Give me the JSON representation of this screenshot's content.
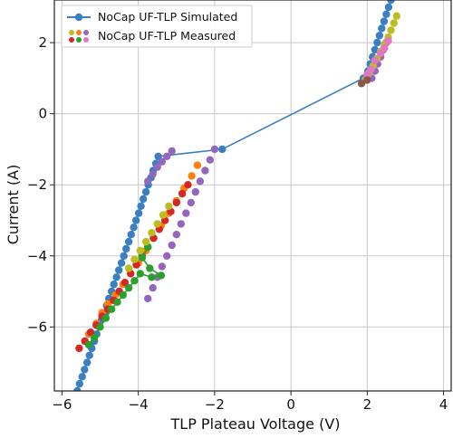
{
  "chart_data": {
    "type": "scatter",
    "xlabel": "TLP Plateau Voltage (V)",
    "ylabel": "Current (A)",
    "xlim": [
      -6.2,
      4.2
    ],
    "ylim": [
      -7.8,
      3.2
    ],
    "xticks": [
      -6,
      -4,
      -2,
      0,
      2,
      4
    ],
    "yticks": [
      -6,
      -4,
      -2,
      0,
      2
    ],
    "xtick_labels": [
      "−6",
      "−4",
      "−2",
      "0",
      "2",
      "4"
    ],
    "ytick_labels": [
      "−6",
      "−4",
      "−2",
      "0",
      "2"
    ],
    "grid": true,
    "legend_position": "top-left",
    "legend": {
      "simulated": "NoCap UF-TLP Simulated",
      "measured": "NoCap UF-TLP Measured"
    },
    "series": [
      {
        "name": "NoCap UF-TLP Simulated",
        "color": "#3a7fc1",
        "style": "line-markers",
        "points": [
          [
            -5.6,
            -7.8
          ],
          [
            -5.54,
            -7.6
          ],
          [
            -5.47,
            -7.4
          ],
          [
            -5.41,
            -7.2
          ],
          [
            -5.34,
            -7.0
          ],
          [
            -5.28,
            -6.8
          ],
          [
            -5.22,
            -6.6
          ],
          [
            -5.15,
            -6.4
          ],
          [
            -5.09,
            -6.2
          ],
          [
            -5.02,
            -6.0
          ],
          [
            -4.96,
            -5.8
          ],
          [
            -4.89,
            -5.6
          ],
          [
            -4.83,
            -5.4
          ],
          [
            -4.77,
            -5.2
          ],
          [
            -4.7,
            -5.0
          ],
          [
            -4.64,
            -4.8
          ],
          [
            -4.57,
            -4.6
          ],
          [
            -4.51,
            -4.4
          ],
          [
            -4.44,
            -4.2
          ],
          [
            -4.38,
            -4.0
          ],
          [
            -4.32,
            -3.8
          ],
          [
            -4.25,
            -3.6
          ],
          [
            -4.19,
            -3.4
          ],
          [
            -4.12,
            -3.2
          ],
          [
            -4.06,
            -3.0
          ],
          [
            -3.99,
            -2.8
          ],
          [
            -3.93,
            -2.6
          ],
          [
            -3.87,
            -2.4
          ],
          [
            -3.8,
            -2.2
          ],
          [
            -3.74,
            -2.0
          ],
          [
            -3.67,
            -1.8
          ],
          [
            -3.61,
            -1.6
          ],
          [
            -3.54,
            -1.4
          ],
          [
            -3.48,
            -1.2
          ],
          [
            -1.8,
            -1.0
          ],
          [
            1.9,
            1.0
          ],
          [
            2.02,
            1.2
          ],
          [
            2.08,
            1.4
          ],
          [
            2.14,
            1.6
          ],
          [
            2.2,
            1.8
          ],
          [
            2.26,
            2.0
          ],
          [
            2.32,
            2.2
          ],
          [
            2.38,
            2.4
          ],
          [
            2.44,
            2.6
          ],
          [
            2.5,
            2.8
          ],
          [
            2.56,
            3.0
          ],
          [
            2.62,
            3.2
          ]
        ]
      },
      {
        "name": "NoCap UF-TLP Measured",
        "color": "#9467bd",
        "style": "markers",
        "points": [
          [
            -3.75,
            -1.9
          ],
          [
            -3.62,
            -1.7
          ],
          [
            -3.5,
            -1.5
          ],
          [
            -3.38,
            -1.35
          ],
          [
            -3.25,
            -1.2
          ],
          [
            -3.12,
            -1.05
          ],
          [
            -2.0,
            -1.0
          ],
          [
            -2.12,
            -1.3
          ],
          [
            -2.25,
            -1.6
          ],
          [
            -2.38,
            -1.9
          ],
          [
            -2.5,
            -2.2
          ],
          [
            -2.62,
            -2.5
          ],
          [
            -2.75,
            -2.8
          ],
          [
            -2.88,
            -3.1
          ],
          [
            -3.0,
            -3.4
          ],
          [
            -3.12,
            -3.7
          ],
          [
            -3.25,
            -4.0
          ],
          [
            -3.38,
            -4.3
          ],
          [
            -3.5,
            -4.6
          ],
          [
            -3.62,
            -4.9
          ],
          [
            -3.75,
            -5.2
          ],
          [
            2.5,
            2.0
          ],
          [
            2.42,
            1.8
          ],
          [
            2.35,
            1.6
          ],
          [
            2.27,
            1.4
          ],
          [
            2.2,
            1.2
          ],
          [
            2.12,
            1.0
          ]
        ]
      },
      {
        "name": "",
        "color": "#ff7f0e",
        "style": "markers",
        "points": [
          [
            -5.3,
            -6.2
          ],
          [
            -5.1,
            -5.9
          ],
          [
            -4.95,
            -5.6
          ],
          [
            -4.8,
            -5.35
          ],
          [
            -4.6,
            -5.1
          ],
          [
            -4.4,
            -4.8
          ],
          [
            -4.2,
            -4.5
          ],
          [
            -4.0,
            -4.2
          ],
          [
            -3.8,
            -3.85
          ],
          [
            -3.6,
            -3.5
          ],
          [
            -3.4,
            -3.15
          ],
          [
            -3.2,
            -2.8
          ],
          [
            -3.0,
            -2.45
          ],
          [
            -2.8,
            -2.1
          ],
          [
            -2.6,
            -1.75
          ],
          [
            -2.45,
            -1.45
          ]
        ]
      },
      {
        "name": "",
        "color": "#d62728",
        "style": "markers",
        "points": [
          [
            -5.55,
            -6.6
          ],
          [
            -5.4,
            -6.4
          ],
          [
            -5.25,
            -6.15
          ],
          [
            -5.1,
            -5.95
          ],
          [
            -4.95,
            -5.7
          ],
          [
            -4.8,
            -5.5
          ],
          [
            -4.65,
            -5.25
          ],
          [
            -4.5,
            -5.0
          ],
          [
            -4.35,
            -4.75
          ],
          [
            -4.2,
            -4.5
          ],
          [
            -4.05,
            -4.25
          ],
          [
            -3.9,
            -4.0
          ],
          [
            -3.75,
            -3.75
          ],
          [
            -3.6,
            -3.5
          ],
          [
            -3.45,
            -3.25
          ],
          [
            -3.3,
            -3.0
          ],
          [
            -3.15,
            -2.75
          ],
          [
            -3.0,
            -2.5
          ],
          [
            -2.85,
            -2.25
          ],
          [
            -2.7,
            -2.0
          ]
        ]
      },
      {
        "name": "",
        "color": "#2ca02c",
        "style": "line-markers",
        "points": [
          [
            -5.3,
            -6.5
          ],
          [
            -5.15,
            -6.3
          ],
          [
            -5.0,
            -6.0
          ],
          [
            -4.85,
            -5.75
          ],
          [
            -4.7,
            -5.5
          ],
          [
            -4.55,
            -5.3
          ],
          [
            -4.4,
            -5.1
          ],
          [
            -4.25,
            -4.9
          ],
          [
            -4.1,
            -4.7
          ],
          [
            -3.95,
            -4.5
          ],
          [
            -3.65,
            -4.6
          ],
          [
            -3.4,
            -4.55
          ],
          [
            -3.7,
            -4.35
          ],
          [
            -3.9,
            -4.05
          ],
          [
            -3.75,
            -3.75
          ]
        ]
      },
      {
        "name": "",
        "color": "#bcbd22",
        "style": "markers",
        "points": [
          [
            -4.25,
            -4.35
          ],
          [
            -4.1,
            -4.1
          ],
          [
            -3.95,
            -3.85
          ],
          [
            -3.8,
            -3.6
          ],
          [
            -3.65,
            -3.35
          ],
          [
            -3.5,
            -3.1
          ],
          [
            -3.35,
            -2.85
          ],
          [
            -3.2,
            -2.6
          ],
          [
            1.95,
            0.95
          ],
          [
            2.05,
            1.15
          ],
          [
            2.15,
            1.35
          ],
          [
            2.25,
            1.55
          ],
          [
            2.35,
            1.75
          ],
          [
            2.45,
            1.95
          ],
          [
            2.55,
            2.15
          ],
          [
            2.62,
            2.35
          ],
          [
            2.7,
            2.55
          ],
          [
            2.77,
            2.75
          ]
        ]
      },
      {
        "name": "",
        "color": "#e377c2",
        "style": "markers",
        "points": [
          [
            2.0,
            1.1
          ],
          [
            2.1,
            1.25
          ],
          [
            2.2,
            1.5
          ],
          [
            2.35,
            1.7
          ],
          [
            2.45,
            1.85
          ],
          [
            2.55,
            2.05
          ]
        ]
      },
      {
        "name": "",
        "color": "#8c564b",
        "style": "markers",
        "points": [
          [
            1.85,
            0.85
          ],
          [
            2.0,
            0.95
          ]
        ]
      }
    ]
  }
}
